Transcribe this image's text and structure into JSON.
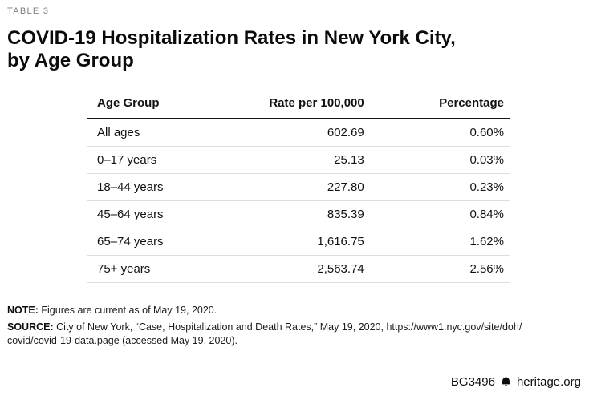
{
  "figure_label": "TABLE 3",
  "title": "COVID-19 Hospitalization Rates in New York City,\nby Age Group",
  "table": {
    "columns": [
      "Age Group",
      "Rate per 100,000",
      "Percentage"
    ],
    "rows": [
      [
        "All ages",
        "602.69",
        "0.60%"
      ],
      [
        "0–17 years",
        "25.13",
        "0.03%"
      ],
      [
        "18–44 years",
        "227.80",
        "0.23%"
      ],
      [
        "45–64 years",
        "835.39",
        "0.84%"
      ],
      [
        "65–74 years",
        "1,616.75",
        "1.62%"
      ],
      [
        "75+ years",
        "2,563.74",
        "2.56%"
      ]
    ]
  },
  "note": {
    "label": "NOTE:",
    "text": "Figures are current as of May 19, 2020."
  },
  "source": {
    "label": "SOURCE:",
    "text": "City of New York, “Case, Hospitalization and Death Rates,” May 19, 2020, https://www1.nyc.gov/site/doh/\ncovid/covid-19-data.page (accessed May 19, 2020)."
  },
  "footer": {
    "doc_id": "BG3496",
    "site": "heritage.org",
    "logo_icon": "liberty-bell-icon"
  },
  "colors": {
    "header_rule": "#161616",
    "row_rule": "#dedede",
    "label_gray": "#7d7d7d",
    "text": "#111111"
  },
  "chart_data": {
    "type": "table",
    "title": "COVID-19 Hospitalization Rates in New York City, by Age Group",
    "columns": [
      "Age Group",
      "Rate per 100,000",
      "Percentage"
    ],
    "rows": [
      {
        "age_group": "All ages",
        "rate_per_100000": 602.69,
        "percentage_pct": 0.6
      },
      {
        "age_group": "0–17 years",
        "rate_per_100000": 25.13,
        "percentage_pct": 0.03
      },
      {
        "age_group": "18–44 years",
        "rate_per_100000": 227.8,
        "percentage_pct": 0.23
      },
      {
        "age_group": "45–64 years",
        "rate_per_100000": 835.39,
        "percentage_pct": 0.84
      },
      {
        "age_group": "65–74 years",
        "rate_per_100000": 1616.75,
        "percentage_pct": 1.62
      },
      {
        "age_group": "75+ years",
        "rate_per_100000": 2563.74,
        "percentage_pct": 2.56
      }
    ],
    "note": "Figures are current as of May 19, 2020.",
    "source": "City of New York, “Case, Hospitalization and Death Rates,” May 19, 2020, https://www1.nyc.gov/site/doh/covid/covid-19-data.page (accessed May 19, 2020)."
  }
}
